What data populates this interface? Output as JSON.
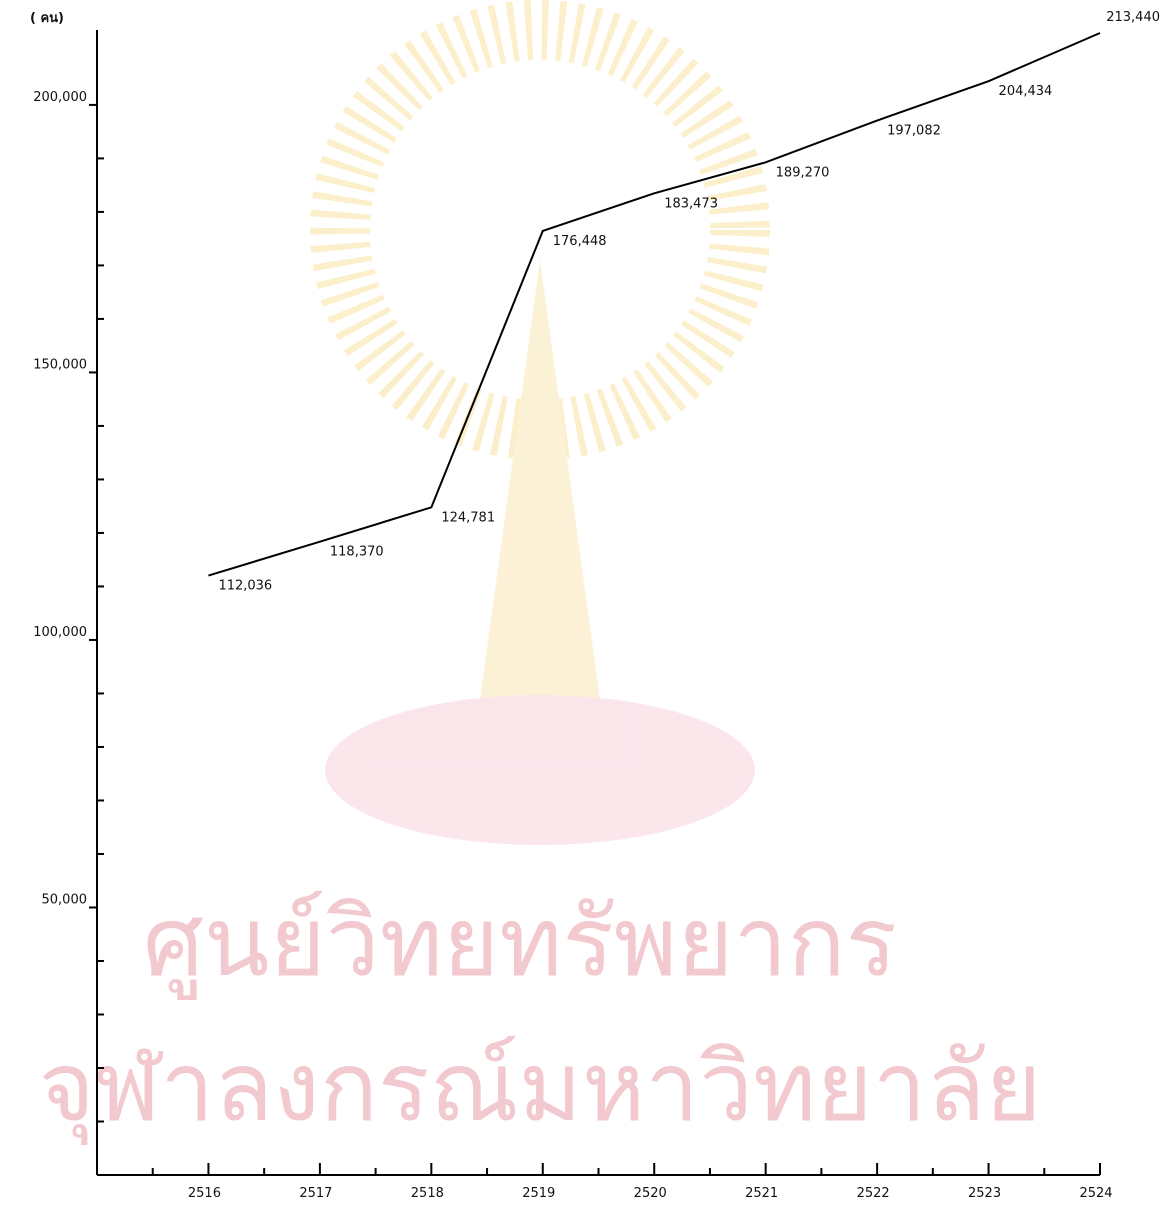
{
  "chart_data": {
    "type": "line",
    "y_label": "( คน)",
    "watermark": [
      "ศูนย์วิทยทรัพยากร",
      "จุฬาลงกรณ์มหาวิทยาลัย"
    ],
    "x": [
      2516,
      2517,
      2518,
      2519,
      2520,
      2521,
      2522,
      2523,
      2524
    ],
    "values": [
      112036,
      118370,
      124781,
      176448,
      183473,
      189270,
      197082,
      204434,
      213440
    ],
    "value_labels": [
      "112,036",
      "118,370",
      "124,781",
      "176,448",
      "183,473",
      "189,270",
      "197,082",
      "204,434",
      "213,440"
    ],
    "color": "#000000",
    "xlim": [
      2515,
      2524
    ],
    "xticks": [
      2516,
      2517,
      2518,
      2519,
      2520,
      2521,
      2522,
      2523,
      2524
    ],
    "xminorticks": [
      2515.5,
      2516.5,
      2517.5,
      2518.5,
      2519.5,
      2520.5,
      2521.5,
      2522.5,
      2523.5
    ],
    "ylim": [
      0,
      214000
    ],
    "yticks": [
      {
        "value": 50000,
        "label": "50,000"
      },
      {
        "value": 100000,
        "label": "100,000"
      },
      {
        "value": 150000,
        "label": "150,000"
      },
      {
        "value": 200000,
        "label": "200,000"
      }
    ],
    "yminorticks": [
      10000,
      20000,
      30000,
      40000,
      60000,
      70000,
      80000,
      90000,
      110000,
      120000,
      130000,
      140000,
      160000,
      170000,
      180000,
      190000
    ],
    "grid": false
  }
}
